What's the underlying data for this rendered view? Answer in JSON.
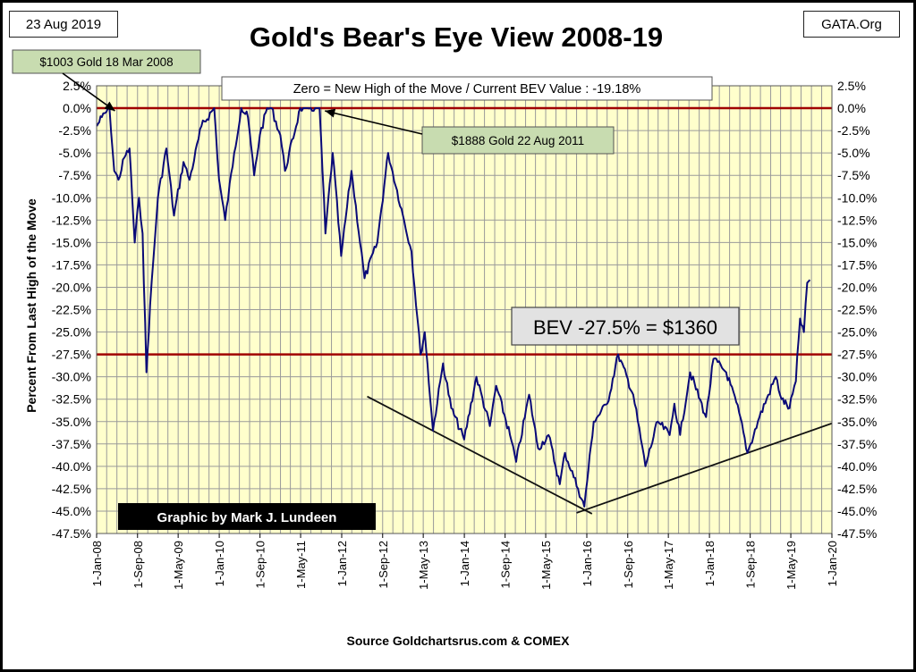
{
  "header": {
    "date": "23 Aug 2019",
    "site": "GATA.Org",
    "title": "Gold's Bear's Eye View 2008-19"
  },
  "colors": {
    "plot_bg": "#ffffcc",
    "line": "#0a0a78",
    "ref_line": "#a00000",
    "callout_bg": "#c8dcb0",
    "bev_box_bg": "#e2e2e2",
    "credit_bg": "#000000"
  },
  "chart_data": {
    "type": "line",
    "title": "Gold's Bear's Eye View 2008-19",
    "ylabel": "Percent  From Last High of the Move",
    "xlabel": "Source Goldchartsrus.com & COMEX",
    "ylim": [
      -47.5,
      2.5
    ],
    "y_tick_step": 2.5,
    "y_ticks": [
      "2.5%",
      "0.0%",
      "-2.5%",
      "-5.0%",
      "-7.5%",
      "-10.0%",
      "-12.5%",
      "-15.0%",
      "-17.5%",
      "-20.0%",
      "-22.5%",
      "-25.0%",
      "-27.5%",
      "-30.0%",
      "-32.5%",
      "-35.0%",
      "-37.5%",
      "-40.0%",
      "-42.5%",
      "-45.0%",
      "-47.5%"
    ],
    "x_ticks": [
      "1-Jan-08",
      "1-Sep-08",
      "1-May-09",
      "1-Jan-10",
      "1-Sep-10",
      "1-May-11",
      "1-Jan-12",
      "1-Sep-12",
      "1-May-13",
      "1-Jan-14",
      "1-Sep-14",
      "1-May-15",
      "1-Jan-16",
      "1-Sep-16",
      "1-May-17",
      "1-Jan-18",
      "1-Sep-18",
      "1-May-19",
      "1-Jan-20"
    ],
    "grid": true,
    "series": [
      {
        "x": [
          "2008-01-02",
          "2008-02-01",
          "2008-03-18",
          "2008-04-15",
          "2008-05-10",
          "2008-06-15",
          "2008-07-15",
          "2008-08-15",
          "2008-09-10",
          "2008-10-01",
          "2008-10-24",
          "2008-11-15",
          "2008-12-31",
          "2009-02-20",
          "2009-04-06",
          "2009-06-02",
          "2009-07-08",
          "2009-09-17",
          "2009-12-02",
          "2009-12-31",
          "2010-02-05",
          "2010-03-31",
          "2010-05-12",
          "2010-06-21",
          "2010-07-28",
          "2010-08-31",
          "2010-10-14",
          "2010-11-08",
          "2010-12-31",
          "2011-01-28",
          "2011-04-29",
          "2011-06-30",
          "2011-08-22",
          "2011-09-26",
          "2011-11-08",
          "2011-12-29",
          "2012-02-28",
          "2012-05-16",
          "2012-07-31",
          "2012-10-04",
          "2012-12-31",
          "2013-02-20",
          "2013-04-15",
          "2013-05-10",
          "2013-06-28",
          "2013-08-27",
          "2013-10-15",
          "2013-12-31",
          "2014-03-14",
          "2014-06-02",
          "2014-07-10",
          "2014-09-30",
          "2014-11-06",
          "2015-01-22",
          "2015-03-17",
          "2015-05-18",
          "2015-07-24",
          "2015-08-24",
          "2015-11-10",
          "2015-12-17",
          "2016-02-11",
          "2016-05-02",
          "2016-07-06",
          "2016-10-04",
          "2016-12-15",
          "2017-02-27",
          "2017-05-09",
          "2017-06-06",
          "2017-07-10",
          "2017-09-08",
          "2017-12-12",
          "2018-01-25",
          "2018-04-11",
          "2018-06-27",
          "2018-08-16",
          "2018-10-26",
          "2019-01-31",
          "2019-03-07",
          "2019-04-23",
          "2019-05-31",
          "2019-06-25",
          "2019-07-18",
          "2019-08-07",
          "2019-08-23"
        ],
        "values": [
          -2.0,
          -1.0,
          0.0,
          -7.0,
          -8.0,
          -5.5,
          -4.5,
          -15.0,
          -10.0,
          -14.0,
          -29.5,
          -22.0,
          -10.0,
          -4.5,
          -12.0,
          -6.0,
          -8.0,
          -2.0,
          0.0,
          -8.0,
          -12.5,
          -5.0,
          0.0,
          -1.0,
          -7.5,
          -3.0,
          0.0,
          0.0,
          -3.0,
          -7.0,
          0.0,
          0.0,
          0.0,
          -14.0,
          -5.0,
          -16.5,
          -7.0,
          -19.0,
          -15.0,
          -5.0,
          -12.0,
          -16.0,
          -27.5,
          -25.0,
          -36.0,
          -28.5,
          -33.5,
          -37.0,
          -30.0,
          -35.5,
          -31.0,
          -36.5,
          -39.5,
          -32.0,
          -38.0,
          -36.5,
          -42.0,
          -38.5,
          -42.5,
          -44.5,
          -35.0,
          -33.0,
          -27.5,
          -32.0,
          -40.0,
          -35.0,
          -36.5,
          -33.0,
          -36.5,
          -29.5,
          -34.5,
          -28.0,
          -29.5,
          -34.0,
          -38.5,
          -34.5,
          -30.0,
          -32.5,
          -33.5,
          -30.5,
          -23.5,
          -25.0,
          -19.5,
          -19.18
        ]
      }
    ],
    "reference_lines": [
      {
        "y": 0.0
      },
      {
        "y": -27.5
      }
    ],
    "trend_lines": [
      {
        "from": [
          "2012-06-01",
          -32.2
        ],
        "to": [
          "2016-02-01",
          -45.3
        ]
      },
      {
        "from": [
          "2015-11-01",
          -45.2
        ],
        "to": [
          "2020-01-01",
          -35.2
        ]
      }
    ],
    "annotations": {
      "note_top": "Zero = New High of the Move / Current  BEV Value : -19.18%",
      "callout_2008": "$1003 Gold 18 Mar 2008",
      "callout_2011": "$1888  Gold 22 Aug 2011",
      "bev_box": "BEV -27.5% = $1360",
      "credit": "Graphic by Mark J. Lundeen"
    },
    "arrows": [
      {
        "from_label": "callout_2008",
        "to": [
          "2008-03-18",
          0.0
        ]
      },
      {
        "from_label": "callout_2011",
        "to": [
          "2011-08-22",
          0.0
        ]
      }
    ]
  }
}
